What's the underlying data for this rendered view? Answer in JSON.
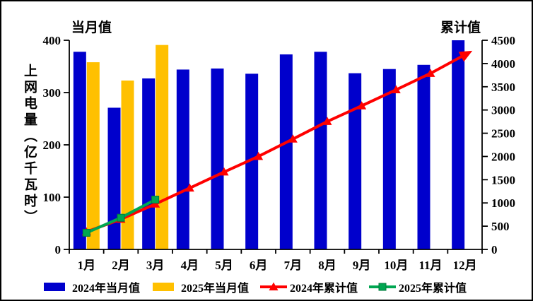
{
  "figure": {
    "left_corner_title": "当月值",
    "right_corner_title": "累计值",
    "y_axis_label": "上网电量（亿千瓦时）"
  },
  "legend": {
    "items": [
      {
        "label": "2024年当月值",
        "swatch": "bar",
        "color": "#0000CC"
      },
      {
        "label": "2025年当月值",
        "swatch": "bar",
        "color": "#FFC000"
      },
      {
        "label": "2024年累计值",
        "swatch": "line-triangle",
        "color": "#FF0000"
      },
      {
        "label": "2025年累计值",
        "swatch": "line-square",
        "color": "#00A651"
      }
    ]
  },
  "colors": {
    "bar_2024": "#0000CC",
    "bar_2025": "#FFC000",
    "line_2024": "#FF0000",
    "line_2025": "#00A651",
    "axis": "#000000",
    "background": "#FFFFFF"
  },
  "chart_data": {
    "type": "bar+line",
    "title": "",
    "ylabel": "上网电量（亿千瓦时）",
    "categories": [
      "1月",
      "2月",
      "3月",
      "4月",
      "5月",
      "6月",
      "7月",
      "8月",
      "9月",
      "10月",
      "11月",
      "12月"
    ],
    "left_axis": {
      "title": "当月值",
      "min": 0,
      "max": 400,
      "step": 100,
      "ticks": [
        0,
        100,
        200,
        300,
        400
      ]
    },
    "right_axis": {
      "title": "累计值",
      "min": 0,
      "max": 4500,
      "step": 500,
      "ticks": [
        0,
        500,
        1000,
        1500,
        2000,
        2500,
        3000,
        3500,
        4000,
        4500
      ]
    },
    "grid": false,
    "legend_position": "bottom",
    "series": [
      {
        "name": "2024年当月值",
        "type": "bar",
        "axis": "left",
        "color": "#0000CC",
        "values": [
          378,
          271,
          327,
          344,
          346,
          336,
          373,
          378,
          337,
          345,
          353,
          400
        ]
      },
      {
        "name": "2025年当月值",
        "type": "bar",
        "axis": "left",
        "color": "#FFC000",
        "values": [
          358,
          323,
          391,
          null,
          null,
          null,
          null,
          null,
          null,
          null,
          null,
          null
        ]
      },
      {
        "name": "2024年累计值",
        "type": "line",
        "marker": "triangle",
        "end_arrow": true,
        "axis": "right",
        "color": "#FF0000",
        "values": [
          378,
          649,
          976,
          1320,
          1666,
          2002,
          2375,
          2753,
          3090,
          3435,
          3788,
          4188
        ]
      },
      {
        "name": "2025年累计值",
        "type": "line",
        "marker": "square",
        "end_arrow": false,
        "axis": "right",
        "color": "#00A651",
        "values": [
          358,
          681,
          1072,
          null,
          null,
          null,
          null,
          null,
          null,
          null,
          null,
          null
        ]
      }
    ]
  }
}
